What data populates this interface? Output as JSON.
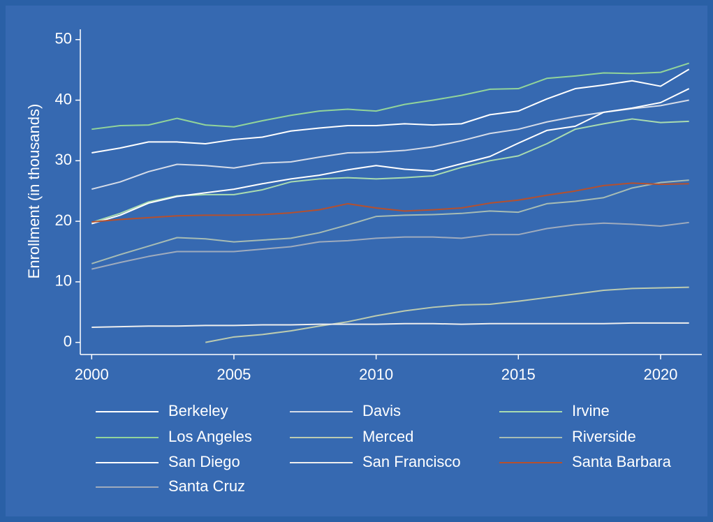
{
  "chart_data": {
    "type": "line",
    "y_label": "Enrollment (in thousands)",
    "x": [
      2000,
      2001,
      2002,
      2003,
      2004,
      2005,
      2006,
      2007,
      2008,
      2009,
      2010,
      2011,
      2012,
      2013,
      2014,
      2015,
      2016,
      2017,
      2018,
      2019,
      2020,
      2021
    ],
    "xlim": [
      1999.6,
      2021.45
    ],
    "xticks": [
      2000,
      2005,
      2010,
      2015,
      2020
    ],
    "ylim": [
      -2,
      51.7
    ],
    "yticks": [
      0,
      10,
      20,
      30,
      40,
      50
    ],
    "legend": "bottom",
    "series": [
      {
        "name": "Berkeley",
        "color": "#ffffff",
        "values": [
          31.3,
          32.1,
          33.1,
          33.1,
          32.8,
          33.5,
          33.9,
          34.9,
          35.4,
          35.8,
          35.8,
          36.1,
          35.9,
          36.1,
          37.6,
          38.2,
          40.2,
          41.9,
          42.5,
          43.2,
          42.3,
          45.1
        ]
      },
      {
        "name": "Davis",
        "color": "#d6dce8",
        "values": [
          25.3,
          26.5,
          28.2,
          29.4,
          29.2,
          28.8,
          29.6,
          29.8,
          30.6,
          31.3,
          31.4,
          31.7,
          32.3,
          33.3,
          34.5,
          35.2,
          36.4,
          37.3,
          38.0,
          38.6,
          39.1,
          40.0
        ]
      },
      {
        "name": "Irvine",
        "color": "#a9dcb0",
        "values": [
          19.8,
          21.3,
          23.2,
          24.2,
          24.4,
          24.4,
          25.2,
          26.5,
          27.0,
          27.2,
          27.0,
          27.2,
          27.5,
          28.9,
          30.0,
          30.8,
          32.8,
          35.2,
          36.1,
          36.9,
          36.3,
          36.5
        ]
      },
      {
        "name": "Los Angeles",
        "color": "#92d49a",
        "values": [
          35.2,
          35.8,
          35.9,
          37.0,
          35.9,
          35.6,
          36.6,
          37.5,
          38.2,
          38.5,
          38.2,
          39.3,
          40.0,
          40.8,
          41.8,
          41.9,
          43.6,
          44.0,
          44.5,
          44.4,
          44.6,
          46.1
        ]
      },
      {
        "name": "Merced",
        "color": "#bccbb0",
        "values": [
          null,
          null,
          null,
          null,
          0.0,
          0.9,
          1.3,
          1.9,
          2.7,
          3.4,
          4.4,
          5.2,
          5.8,
          6.2,
          6.3,
          6.8,
          7.4,
          8.0,
          8.6,
          8.9,
          9.0,
          9.1
        ]
      },
      {
        "name": "Riverside",
        "color": "#a7bcb4",
        "values": [
          13.0,
          14.5,
          15.9,
          17.3,
          17.1,
          16.6,
          16.9,
          17.2,
          18.1,
          19.4,
          20.8,
          21.0,
          21.1,
          21.3,
          21.7,
          21.5,
          22.9,
          23.3,
          23.9,
          25.5,
          26.4,
          26.8
        ]
      },
      {
        "name": "San Diego",
        "color": "#ffffff",
        "values": [
          19.6,
          21.0,
          23.0,
          24.1,
          24.7,
          25.3,
          26.2,
          27.0,
          27.6,
          28.5,
          29.2,
          28.6,
          28.3,
          29.5,
          30.7,
          32.9,
          35.0,
          35.7,
          38.0,
          38.7,
          39.6,
          41.9
        ]
      },
      {
        "name": "San Francisco",
        "color": "#eeeeee",
        "values": [
          2.5,
          2.6,
          2.7,
          2.7,
          2.8,
          2.8,
          2.9,
          2.9,
          3.0,
          3.0,
          3.0,
          3.1,
          3.1,
          3.0,
          3.1,
          3.1,
          3.1,
          3.1,
          3.1,
          3.2,
          3.2,
          3.2
        ]
      },
      {
        "name": "Santa Barbara",
        "color": "#b5502e",
        "values": [
          19.9,
          20.3,
          20.6,
          20.9,
          21.0,
          21.0,
          21.1,
          21.4,
          21.9,
          22.9,
          22.2,
          21.7,
          21.9,
          22.2,
          23.0,
          23.5,
          24.3,
          25.0,
          25.9,
          26.3,
          26.1,
          26.2
        ]
      },
      {
        "name": "Santa Cruz",
        "color": "#9fabbd",
        "values": [
          12.1,
          13.2,
          14.2,
          15.0,
          15.0,
          15.0,
          15.4,
          15.8,
          16.6,
          16.8,
          17.2,
          17.4,
          17.4,
          17.2,
          17.8,
          17.8,
          18.8,
          19.4,
          19.7,
          19.5,
          19.2,
          19.8
        ]
      }
    ]
  }
}
